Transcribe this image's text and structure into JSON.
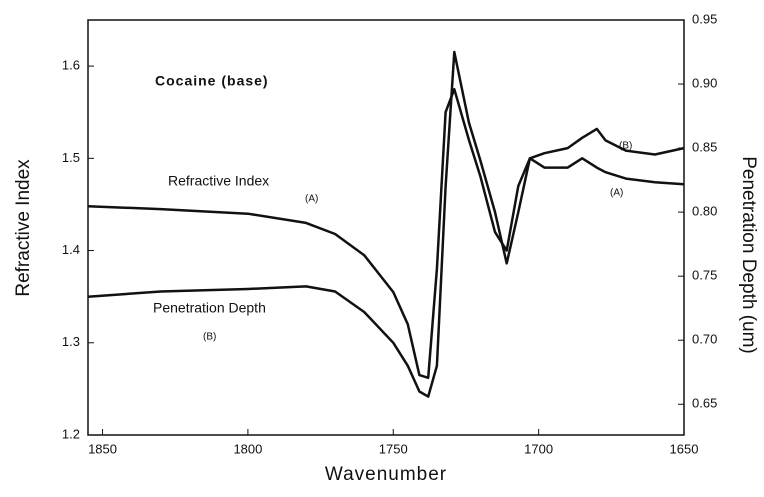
{
  "chart_data": {
    "type": "line",
    "annotations": [
      "Cocaine (base)",
      "Refractive Index",
      "(A)",
      "Penetration Depth",
      "(B)",
      "(B)",
      "(A)"
    ],
    "x_label": "Wavenumber",
    "y_label": "Refractive Index",
    "y2_label": "Penetration Depth (um)",
    "xlim": [
      1855,
      1650
    ],
    "xticks": [
      1850,
      1800,
      1750,
      1700,
      1650
    ],
    "ylim": [
      1.2,
      1.65
    ],
    "yticks": [
      1.2,
      1.3,
      1.4,
      1.5,
      1.6
    ],
    "y2lim": [
      0.626,
      0.95
    ],
    "y2ticks": [
      0.65,
      {
        "value": 0.7,
        "label": "0.70"
      },
      0.75,
      {
        "value": 0.8,
        "label": "0.80"
      },
      0.85,
      {
        "value": 0.9,
        "label": "0.90"
      },
      0.95
    ],
    "x": [
      1855,
      1830,
      1800,
      1780,
      1770,
      1760,
      1750,
      1745,
      1741,
      1738,
      1735,
      1732,
      1729,
      1724,
      1720,
      1715,
      1711,
      1707,
      1703,
      1698,
      1690,
      1685,
      1680,
      1677,
      1670,
      1660,
      1650
    ],
    "series": [
      {
        "name": "Refractive Index (A)",
        "color": "#111",
        "values": [
          1.448,
          1.445,
          1.44,
          1.43,
          1.418,
          1.395,
          1.355,
          1.32,
          1.265,
          1.262,
          1.38,
          1.55,
          1.575,
          1.52,
          1.48,
          1.42,
          1.4,
          1.47,
          1.5,
          1.49,
          1.49,
          1.5,
          1.49,
          1.485,
          1.478,
          1.474,
          1.472
        ]
      },
      {
        "name": "Penetration Depth (B)",
        "color": "#111",
        "axis": "y2",
        "values": [
          0.734,
          0.738,
          0.74,
          0.742,
          0.738,
          0.722,
          0.698,
          0.68,
          0.66,
          0.656,
          0.68,
          0.82,
          0.925,
          0.87,
          0.84,
          0.8,
          0.76,
          0.8,
          0.842,
          0.846,
          0.85,
          0.858,
          0.865,
          0.856,
          0.848,
          0.845,
          0.85
        ]
      }
    ]
  }
}
